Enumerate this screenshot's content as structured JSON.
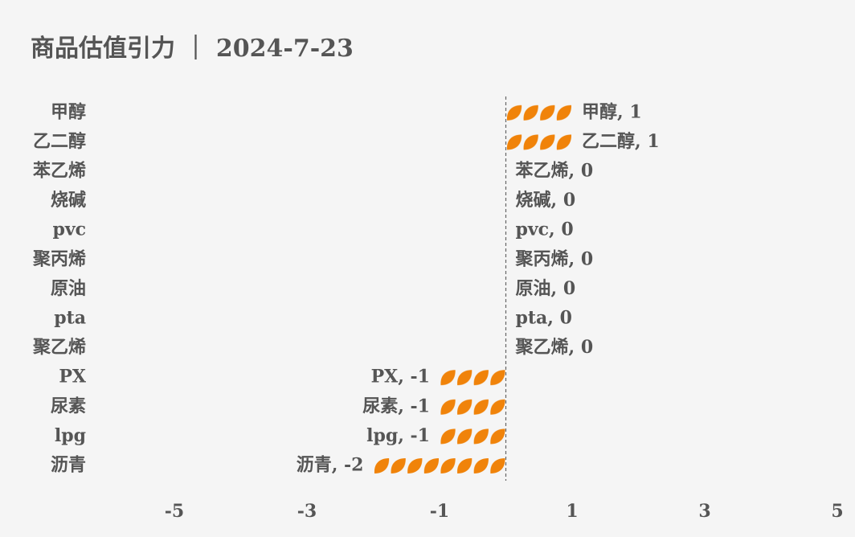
{
  "chart_data": {
    "type": "pictorial-bar",
    "orientation": "horizontal",
    "title": "商品估值引力 ｜ 2024-7-23",
    "categories": [
      "甲醇",
      "乙二醇",
      "苯乙烯",
      "烧碱",
      "pvc",
      "聚丙烯",
      "原油",
      "pta",
      "聚乙烯",
      "PX",
      "尿素",
      "lpg",
      "沥青"
    ],
    "values": [
      1,
      1,
      0,
      0,
      0,
      0,
      0,
      0,
      0,
      -1,
      -1,
      -1,
      -2
    ],
    "value_labels": [
      "甲醇, 1",
      "乙二醇, 1",
      "苯乙烯, 0",
      "烧碱, 0",
      "pvc, 0",
      "聚丙烯, 0",
      "原油, 0",
      "pta, 0",
      "聚乙烯, 0",
      "PX, -1",
      "尿素, -1",
      "lpg, -1",
      "沥青, -2"
    ],
    "color": "#f0830a",
    "xlim": [
      -6,
      5
    ],
    "xticks": [
      -5,
      -3,
      -1,
      1,
      3,
      5
    ],
    "grid": false
  }
}
